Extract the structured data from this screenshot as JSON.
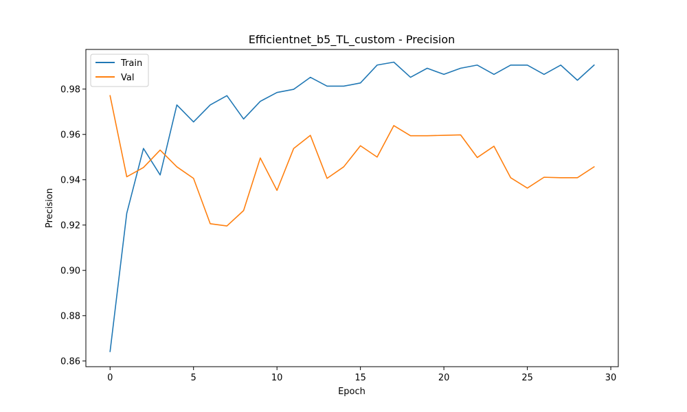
{
  "chart_data": {
    "type": "line",
    "title": "Efficientnet_b5_TL_custom - Precision",
    "xlabel": "Epoch",
    "ylabel": "Precision",
    "xlim": [
      -1.45,
      30.45
    ],
    "ylim": [
      0.8575,
      0.9975
    ],
    "xticks": [
      0,
      5,
      10,
      15,
      20,
      25,
      30
    ],
    "yticks": [
      0.86,
      0.88,
      0.9,
      0.92,
      0.94,
      0.96,
      0.98
    ],
    "xtick_labels": [
      "0",
      "5",
      "10",
      "15",
      "20",
      "25",
      "30"
    ],
    "ytick_labels": [
      "0.86",
      "0.88",
      "0.90",
      "0.92",
      "0.94",
      "0.96",
      "0.98"
    ],
    "grid": false,
    "legend_position": "top-left",
    "x": [
      0,
      1,
      2,
      3,
      4,
      5,
      6,
      7,
      8,
      9,
      10,
      11,
      12,
      13,
      14,
      15,
      16,
      17,
      18,
      19,
      20,
      21,
      22,
      23,
      24,
      25,
      26,
      27,
      28,
      29
    ],
    "series": [
      {
        "name": "Train",
        "color": "#1f77b4",
        "values": [
          0.8642,
          0.9252,
          0.9538,
          0.9421,
          0.973,
          0.9655,
          0.973,
          0.9771,
          0.9668,
          0.9746,
          0.9785,
          0.9799,
          0.9852,
          0.9813,
          0.9813,
          0.9827,
          0.9906,
          0.9919,
          0.9852,
          0.9892,
          0.9865,
          0.9892,
          0.9906,
          0.9865,
          0.9906,
          0.9906,
          0.9865,
          0.9906,
          0.9839,
          0.9906
        ]
      },
      {
        "name": "Val",
        "color": "#ff7f0e",
        "values": [
          0.9771,
          0.9413,
          0.9454,
          0.9531,
          0.9457,
          0.9406,
          0.9206,
          0.9196,
          0.9264,
          0.9496,
          0.9353,
          0.9538,
          0.9596,
          0.9406,
          0.9457,
          0.955,
          0.95,
          0.9639,
          0.9594,
          0.9594,
          0.9596,
          0.9598,
          0.9498,
          0.9548,
          0.9409,
          0.9363,
          0.9411,
          0.9409,
          0.9409,
          0.9457
        ]
      }
    ]
  }
}
